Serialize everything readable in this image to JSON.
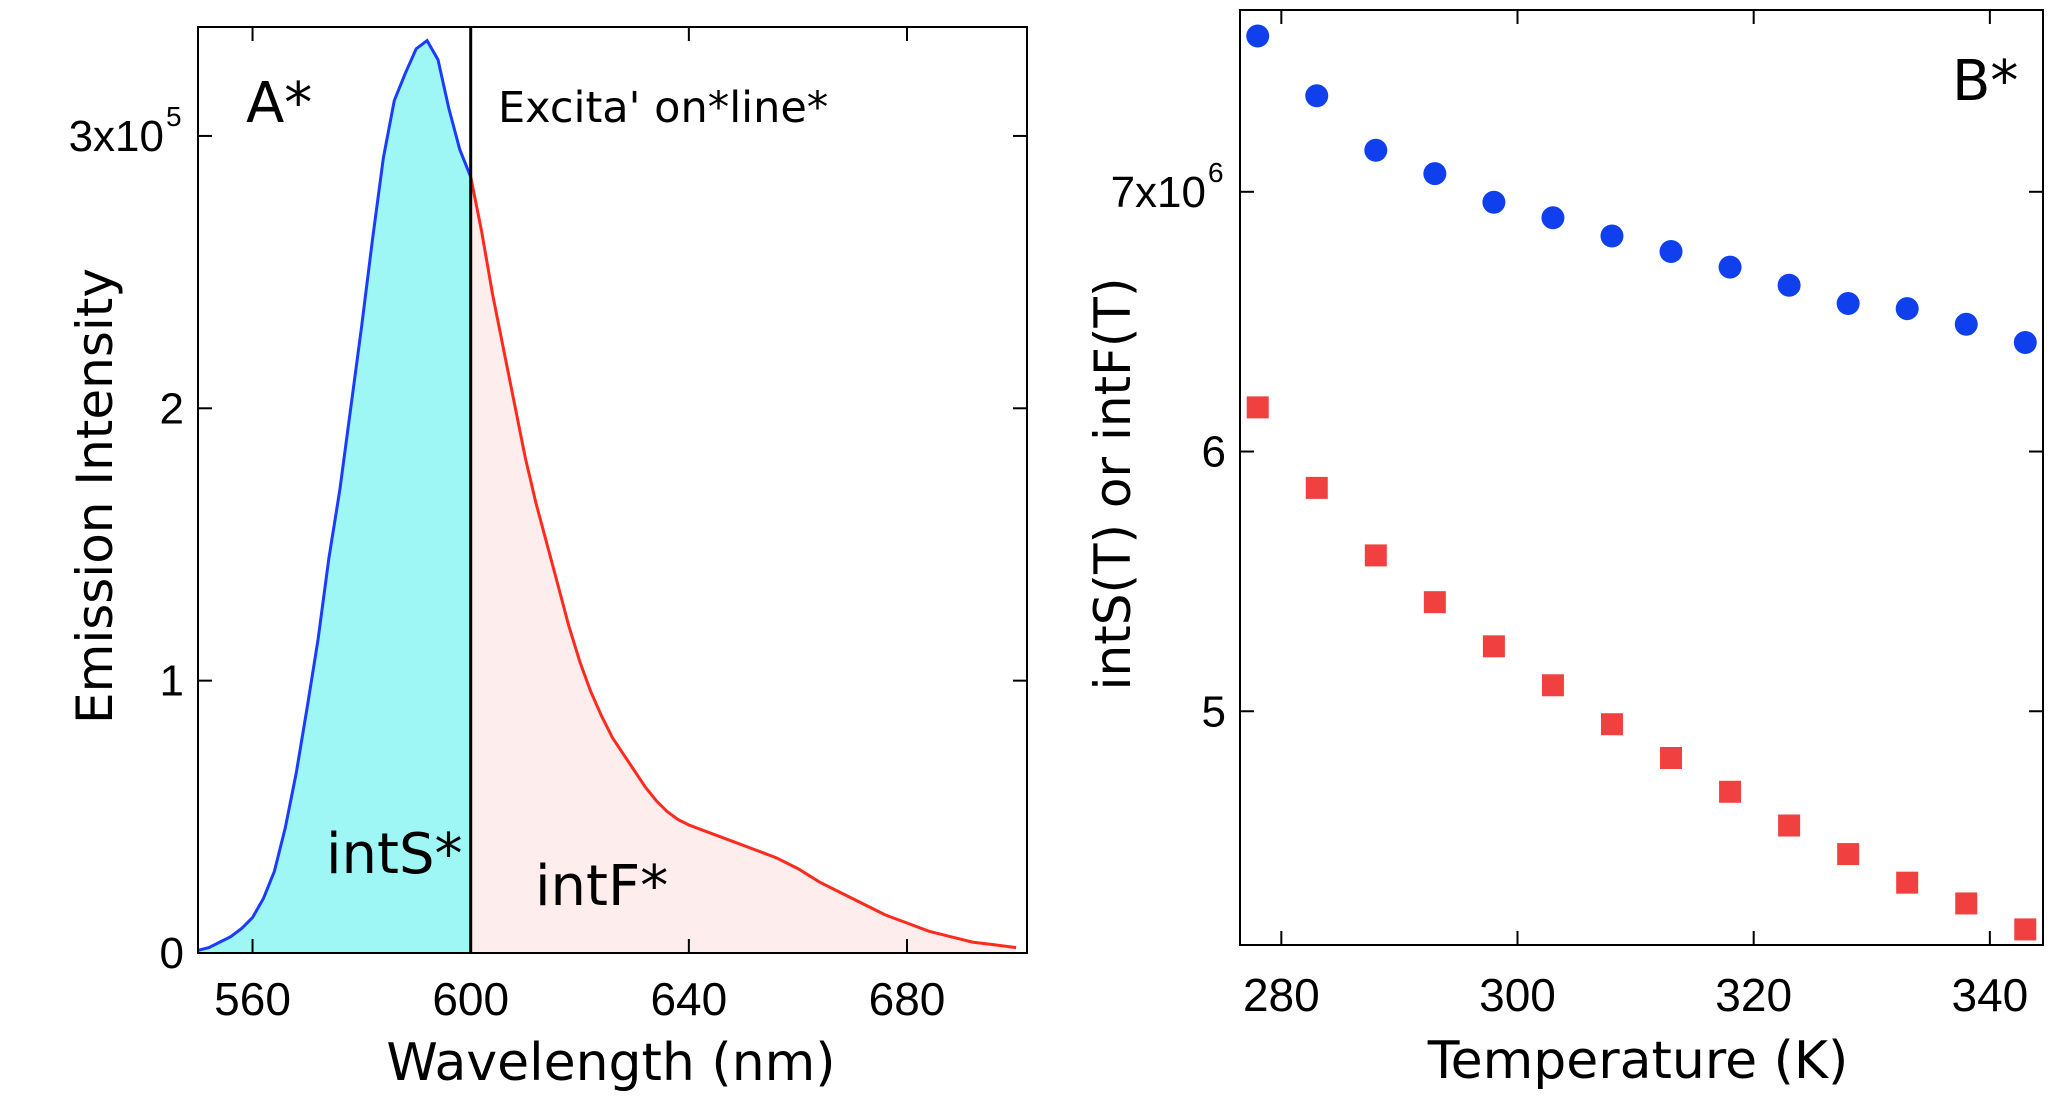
{
  "chart_data": [
    {
      "panel": "A",
      "type": "area",
      "panel_label": "A*",
      "xlabel": "Wavelength (nm)",
      "ylabel": "Emission Intensity",
      "xlim": [
        550,
        702
      ],
      "ylim": [
        0,
        340000
      ],
      "x_ticks": [
        560,
        600,
        640,
        680
      ],
      "x_tick_labels": [
        "560",
        "600",
        "640",
        "680"
      ],
      "y_ticks": [
        0,
        100000,
        200000,
        300000
      ],
      "y_tick_labels": [
        "0",
        "1",
        "2",
        "3x10"
      ],
      "y_tick_label_superscript": "5",
      "excitation_line_x": 600,
      "excitation_label": "Excita' on*line*",
      "region_labels": {
        "intS": "intS*",
        "intF": "intF*"
      },
      "colors": {
        "intS_line": "#1a3cff",
        "intS_fill": "#9ff7f5",
        "intF_line": "#ff2a1e",
        "intF_fill": "#fdeded"
      },
      "series": [
        {
          "name": "intS",
          "x": [
            550,
            552,
            554,
            556,
            558,
            560,
            562,
            564,
            566,
            568,
            570,
            572,
            574,
            576,
            578,
            580,
            582,
            584,
            586,
            588,
            590,
            592,
            594,
            596,
            598,
            600
          ],
          "y": [
            1000,
            2000,
            4000,
            6000,
            9000,
            13000,
            20000,
            30000,
            46000,
            66000,
            90000,
            115000,
            145000,
            170000,
            200000,
            230000,
            262000,
            292000,
            313000,
            323000,
            332000,
            335000,
            328000,
            310000,
            295000,
            285000
          ]
        },
        {
          "name": "intF",
          "x": [
            600,
            602,
            604,
            606,
            608,
            610,
            612,
            614,
            616,
            618,
            620,
            622,
            624,
            626,
            628,
            630,
            632,
            634,
            636,
            638,
            640,
            644,
            648,
            652,
            656,
            660,
            664,
            668,
            672,
            676,
            680,
            684,
            688,
            692,
            696,
            700
          ],
          "y": [
            285000,
            265000,
            242000,
            222000,
            202000,
            182000,
            165000,
            150000,
            135000,
            120000,
            107000,
            96000,
            87000,
            79000,
            73000,
            67000,
            61000,
            56000,
            52000,
            49000,
            47000,
            44000,
            41000,
            38000,
            35000,
            31000,
            26000,
            22000,
            18000,
            14000,
            11000,
            8000,
            6000,
            4000,
            3000,
            2000
          ]
        }
      ]
    },
    {
      "panel": "B",
      "type": "scatter",
      "panel_label": "B*",
      "xlabel": "Temperature (K)",
      "ylabel": "intS(T) or intF(T)",
      "xlim": [
        276.5,
        344.5
      ],
      "ylim": [
        4100000,
        7700000
      ],
      "x_ticks": [
        280,
        300,
        320,
        340
      ],
      "x_tick_labels": [
        "280",
        "300",
        "320",
        "340"
      ],
      "y_ticks": [
        5000000,
        6000000,
        7000000
      ],
      "y_tick_labels": [
        "5",
        "6",
        "7x10"
      ],
      "y_tick_label_superscript": "6",
      "series": [
        {
          "name": "intS",
          "marker": "circle",
          "color": "#1040ee",
          "x": [
            278,
            283,
            288,
            293,
            298,
            303,
            308,
            313,
            318,
            323,
            328,
            333,
            338,
            343
          ],
          "y": [
            7600000,
            7370000,
            7160000,
            7070000,
            6960000,
            6900000,
            6830000,
            6770000,
            6710000,
            6640000,
            6570000,
            6550000,
            6490000,
            6420000
          ]
        },
        {
          "name": "intF",
          "marker": "square",
          "color": "#f04040",
          "x": [
            278,
            283,
            288,
            293,
            298,
            303,
            308,
            313,
            318,
            323,
            328,
            333,
            338,
            343
          ],
          "y": [
            6170000,
            5860000,
            5600000,
            5420000,
            5250000,
            5100000,
            4950000,
            4820000,
            4690000,
            4560000,
            4450000,
            4340000,
            4260000,
            4160000
          ]
        }
      ]
    }
  ]
}
